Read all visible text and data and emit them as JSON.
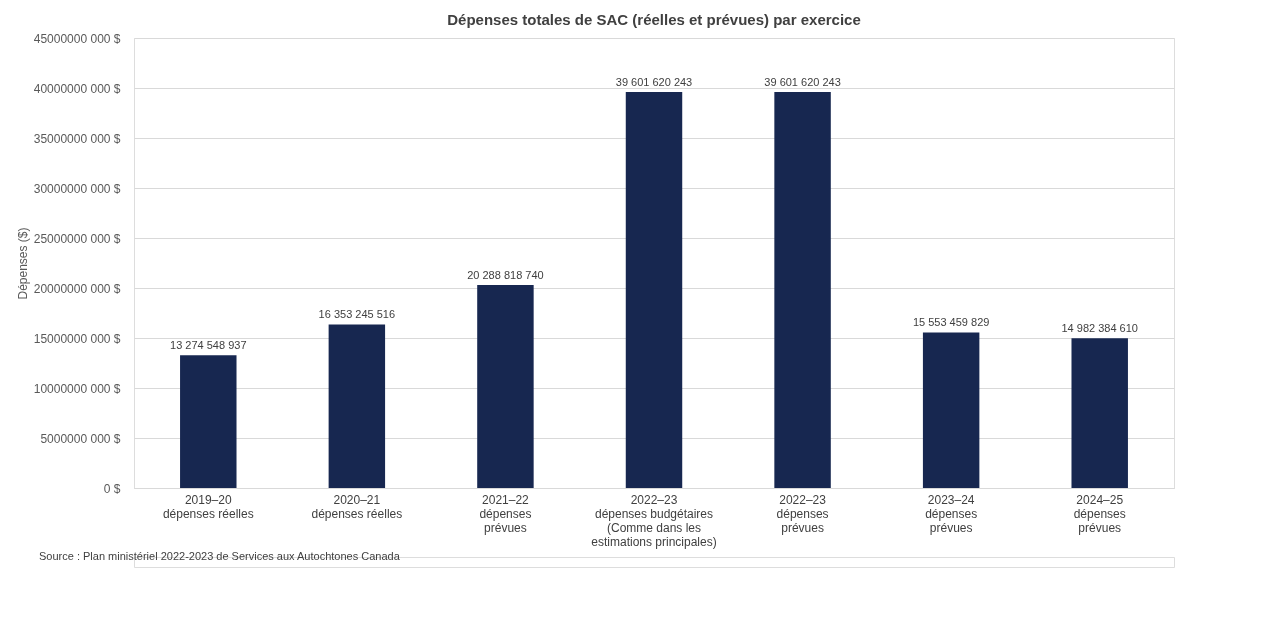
{
  "chart_data": {
    "type": "bar",
    "title": "Dépenses totales de SAC (réelles et prévues) par exercice",
    "ylabel": "Dépenses ($)",
    "categories": [
      "2019–20\ndépenses réelles",
      "2020–21\ndépenses réelles",
      "2021–22\ndépenses\nprévues",
      "2022–23\ndépenses budgétaires\n(Comme dans les\nestimations principales)",
      "2022–23\ndépenses\nprévues",
      "2023–24\ndépenses\nprévues",
      "2024–25\ndépenses\nprévues"
    ],
    "values": [
      13274548937,
      16353245516,
      20288818740,
      39601620243,
      39601620243,
      15553459829,
      14982384610
    ],
    "value_labels": [
      "13 274 548 937",
      "16 353 245 516",
      "20 288 818 740",
      "39 601 620 243",
      "39 601 620 243",
      "15 553 459 829",
      "14 982 384 610"
    ],
    "color": "#172750",
    "ylim": [
      0,
      45000000000
    ],
    "yticks": [
      {
        "value": 0,
        "label": "0 $"
      },
      {
        "value": 5000000000,
        "label": "5000000 000 $"
      },
      {
        "value": 10000000000,
        "label": "10000000 000 $"
      },
      {
        "value": 15000000000,
        "label": "15000000 000 $"
      },
      {
        "value": 20000000000,
        "label": "20000000 000 $"
      },
      {
        "value": 25000000000,
        "label": "25000000 000 $"
      },
      {
        "value": 30000000000,
        "label": "30000000 000 $"
      },
      {
        "value": 35000000000,
        "label": "35000000 000 $"
      },
      {
        "value": 40000000000,
        "label": "40000000 000 $"
      },
      {
        "value": 45000000000,
        "label": "45000000 000 $"
      }
    ],
    "grid": "y",
    "annotations": [
      "Source : Plan ministériel 2022-2023 de Services aux Autochtones Canada"
    ]
  }
}
